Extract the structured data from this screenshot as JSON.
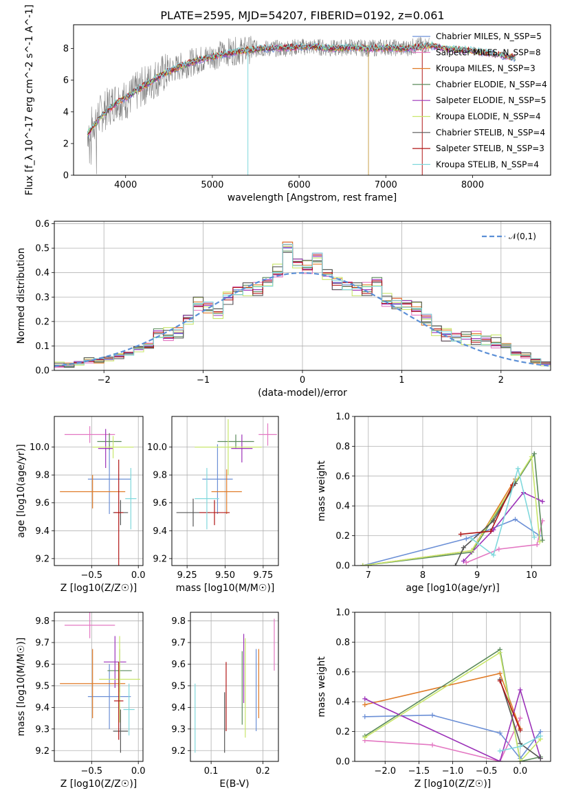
{
  "figure": {
    "title": "PLATE=2595, MJD=54207, FIBERID=0192, z=0.061"
  },
  "legend": [
    {
      "name": "Chabrier MILES, N_SSP=5",
      "color": "#6b8fd6"
    },
    {
      "name": "Salpeter MILES, N_SSP=8",
      "color": "#e377c2"
    },
    {
      "name": "Kroupa MILES, N_SSP=3",
      "color": "#e07b28"
    },
    {
      "name": "Chabrier ELODIE, N_SSP=4",
      "color": "#5a8a5a"
    },
    {
      "name": "Salpeter ELODIE, N_SSP=5",
      "color": "#9b30b8"
    },
    {
      "name": "Kroupa ELODIE, N_SSP=4",
      "color": "#c8e66a"
    },
    {
      "name": "Chabrier STELIB, N_SSP=4",
      "color": "#555555"
    },
    {
      "name": "Salpeter STELIB, N_SSP=3",
      "color": "#b01515"
    },
    {
      "name": "Kroupa STELIB, N_SSP=4",
      "color": "#7fd8dc"
    }
  ],
  "colors": {
    "data_spectrum": "#808080",
    "normal_curve": "#5b8fd6",
    "grid": "#b0b0b0"
  },
  "chart_data": [
    {
      "id": "spectrum",
      "type": "line",
      "xlabel": "wavelength [Angstrom, rest frame]",
      "ylabel": "Flux [f_λ 10^-17 erg cm^-2 s^-1 A^-1]",
      "xlim": [
        3400,
        8900
      ],
      "ylim": [
        0,
        9.5
      ],
      "xticks": [
        4000,
        5000,
        6000,
        7000,
        8000
      ],
      "yticks": [
        0,
        2,
        4,
        6,
        8
      ],
      "grid": false,
      "legend_position": "right",
      "data_envelope": {
        "x": [
          3560,
          3700,
          3900,
          4000,
          4200,
          4400,
          4600,
          4800,
          5000,
          5200,
          5400,
          5600,
          5800,
          6000,
          6200,
          6400,
          6600,
          6800,
          7000,
          7200,
          7400,
          7500
        ],
        "y": [
          2.8,
          3.8,
          4.8,
          4.7,
          5.6,
          6.3,
          6.8,
          7.2,
          7.5,
          7.8,
          7.9,
          8.0,
          8.0,
          8.1,
          8.1,
          8.0,
          8.1,
          8.0,
          8.1,
          8.0,
          8.2,
          8.2
        ]
      },
      "model_continuum": {
        "x": [
          3560,
          3700,
          3900,
          4000,
          4200,
          4400,
          4600,
          4800,
          5000,
          5200,
          5400,
          5600,
          5800,
          6000,
          6200,
          6400,
          6600,
          6800,
          7000,
          7200,
          7400,
          7500,
          7700,
          8000,
          8300,
          8500
        ],
        "y": [
          2.6,
          3.6,
          4.6,
          4.9,
          5.6,
          6.3,
          6.8,
          7.2,
          7.5,
          7.7,
          7.9,
          8.0,
          8.05,
          8.1,
          8.1,
          8.0,
          8.05,
          8.0,
          8.05,
          8.0,
          8.1,
          8.2,
          8.0,
          7.85,
          7.6,
          7.4
        ]
      }
    },
    {
      "id": "residuals",
      "type": "histogram",
      "xlabel": "(data-model)/error",
      "ylabel": "Normed distribution",
      "xlim": [
        -2.5,
        2.5
      ],
      "ylim": [
        0,
        0.61
      ],
      "xticks": [
        -2,
        -1,
        0,
        1,
        2
      ],
      "xtick_labels": [
        "−2",
        "−1",
        "0",
        "1",
        "2"
      ],
      "yticks": [
        0,
        0.1,
        0.2,
        0.3,
        0.4,
        0.5,
        0.6
      ],
      "grid": true,
      "bin_width": 0.1,
      "legend": "𝒩(0,1)",
      "legend_position": "top-right",
      "reference_curve": "normal(0,1)",
      "bins_center": [
        -2.45,
        -2.35,
        -2.25,
        -2.15,
        -2.05,
        -1.95,
        -1.85,
        -1.75,
        -1.65,
        -1.55,
        -1.45,
        -1.35,
        -1.25,
        -1.15,
        -1.05,
        -0.95,
        -0.85,
        -0.75,
        -0.65,
        -0.55,
        -0.45,
        -0.35,
        -0.25,
        -0.15,
        -0.05,
        0.05,
        0.15,
        0.25,
        0.35,
        0.45,
        0.55,
        0.65,
        0.75,
        0.85,
        0.95,
        1.05,
        1.15,
        1.25,
        1.35,
        1.45,
        1.55,
        1.65,
        1.75,
        1.85,
        1.95,
        2.05,
        2.15,
        2.25,
        2.35,
        2.45
      ],
      "values": [
        0.02,
        0.02,
        0.03,
        0.04,
        0.04,
        0.05,
        0.06,
        0.07,
        0.09,
        0.1,
        0.15,
        0.14,
        0.15,
        0.21,
        0.27,
        0.26,
        0.24,
        0.3,
        0.33,
        0.34,
        0.33,
        0.36,
        0.4,
        0.5,
        0.44,
        0.42,
        0.46,
        0.4,
        0.36,
        0.35,
        0.34,
        0.33,
        0.36,
        0.28,
        0.27,
        0.27,
        0.25,
        0.21,
        0.17,
        0.15,
        0.14,
        0.14,
        0.13,
        0.12,
        0.11,
        0.1,
        0.07,
        0.06,
        0.04,
        0.03
      ]
    },
    {
      "id": "age-vs-Z",
      "type": "errorbar",
      "xlabel": "Z [log10(Z/Z☉)]",
      "ylabel": "age  [log10(age/yr)]",
      "xlim": [
        -0.9,
        0.05
      ],
      "ylim": [
        9.15,
        10.22
      ],
      "xticks": [
        -0.5,
        0.0
      ],
      "xtick_labels": [
        "−0.5",
        "0.0"
      ],
      "yticks": [
        9.2,
        9.4,
        9.6,
        9.8,
        10.0
      ],
      "grid": true,
      "points": [
        {
          "x": -0.31,
          "y": 9.77,
          "xerr": 0.23,
          "yerr": 0.25,
          "color": "#6b8fd6"
        },
        {
          "x": -0.52,
          "y": 10.09,
          "xerr": 0.27,
          "yerr": 0.06,
          "color": "#e377c2"
        },
        {
          "x": -0.49,
          "y": 9.68,
          "xerr": 0.35,
          "yerr": 0.12,
          "color": "#e07b28"
        },
        {
          "x": -0.31,
          "y": 10.04,
          "xerr": 0.13,
          "yerr": 0.06,
          "color": "#5a8a5a"
        },
        {
          "x": -0.35,
          "y": 9.99,
          "xerr": 0.08,
          "yerr": 0.14,
          "color": "#9b30b8"
        },
        {
          "x": -0.27,
          "y": 10.0,
          "xerr": 0.22,
          "yerr": 0.08,
          "color": "#c8e66a"
        },
        {
          "x": -0.19,
          "y": 9.53,
          "xerr": 0.08,
          "yerr": 0.09,
          "color": "#555555"
        },
        {
          "x": -0.21,
          "y": 9.53,
          "xerr": 0.05,
          "yerr": 0.38,
          "color": "#b01515"
        },
        {
          "x": -0.08,
          "y": 9.63,
          "xerr": 0.06,
          "yerr": 0.22,
          "color": "#7fd8dc"
        }
      ]
    },
    {
      "id": "age-vs-mass",
      "type": "errorbar",
      "xlabel": "mass [log10(M/M☉)]",
      "ylabel": "",
      "xlim": [
        9.15,
        9.85
      ],
      "ylim": [
        9.15,
        10.22
      ],
      "xticks": [
        9.25,
        9.5,
        9.75
      ],
      "xtick_labels": [
        "9.25",
        "9.50",
        "9.75"
      ],
      "yticks": [
        9.2,
        9.4,
        9.6,
        9.8,
        10.0
      ],
      "grid": true,
      "points": [
        {
          "x": 9.45,
          "y": 9.77,
          "xerr": 0.1,
          "yerr": 0.25,
          "color": "#6b8fd6"
        },
        {
          "x": 9.78,
          "y": 10.09,
          "xerr": 0.06,
          "yerr": 0.08,
          "color": "#e377c2"
        },
        {
          "x": 9.51,
          "y": 9.68,
          "xerr": 0.1,
          "yerr": 0.16,
          "color": "#e07b28"
        },
        {
          "x": 9.57,
          "y": 10.04,
          "xerr": 0.12,
          "yerr": 0.05,
          "color": "#5a8a5a"
        },
        {
          "x": 9.61,
          "y": 9.99,
          "xerr": 0.07,
          "yerr": 0.1,
          "color": "#9b30b8"
        },
        {
          "x": 9.52,
          "y": 10.0,
          "xerr": 0.22,
          "yerr": 0.2,
          "color": "#c8e66a"
        },
        {
          "x": 9.29,
          "y": 9.53,
          "xerr": 0.11,
          "yerr": 0.1,
          "color": "#555555"
        },
        {
          "x": 9.43,
          "y": 9.53,
          "xerr": 0.1,
          "yerr": 0.09,
          "color": "#b01515"
        },
        {
          "x": 9.38,
          "y": 9.63,
          "xerr": 0.08,
          "yerr": 0.22,
          "color": "#7fd8dc"
        }
      ]
    },
    {
      "id": "weight-vs-age",
      "type": "line",
      "xlabel": "age  [log10(age/yr)]",
      "ylabel": "mass weight",
      "xlim": [
        6.75,
        10.35
      ],
      "ylim": [
        0,
        1.0
      ],
      "xticks": [
        7,
        8,
        9,
        10
      ],
      "yticks": [
        0.0,
        0.2,
        0.4,
        0.6,
        0.8,
        1.0
      ],
      "grid": true,
      "series": [
        {
          "color": "#6b8fd6",
          "x": [
            6.9,
            8.8,
            9.7,
            10.15
          ],
          "y": [
            0.0,
            0.18,
            0.31,
            0.2
          ]
        },
        {
          "color": "#e377c2",
          "x": [
            8.8,
            9.4,
            10.1,
            10.2
          ],
          "y": [
            0.02,
            0.11,
            0.14,
            0.3
          ]
        },
        {
          "color": "#e07b28",
          "x": [
            6.9,
            8.9,
            9.7
          ],
          "y": [
            0.0,
            0.1,
            0.58
          ]
        },
        {
          "color": "#5a8a5a",
          "x": [
            6.9,
            8.9,
            10.05,
            10.2
          ],
          "y": [
            0.0,
            0.09,
            0.75,
            0.17
          ]
        },
        {
          "color": "#9b30b8",
          "x": [
            8.75,
            9.3,
            9.85,
            10.2
          ],
          "y": [
            0.03,
            0.24,
            0.49,
            0.43
          ]
        },
        {
          "color": "#c8e66a",
          "x": [
            6.9,
            8.9,
            10.0,
            10.15
          ],
          "y": [
            0.0,
            0.1,
            0.73,
            0.16
          ]
        },
        {
          "color": "#555555",
          "x": [
            8.6,
            8.75,
            9.3,
            9.7
          ],
          "y": [
            0.0,
            0.12,
            0.3,
            0.55
          ]
        },
        {
          "color": "#b01515",
          "x": [
            8.7,
            9.25,
            9.65
          ],
          "y": [
            0.21,
            0.23,
            0.54
          ]
        },
        {
          "color": "#7fd8dc",
          "x": [
            8.9,
            9.3,
            9.75,
            10.05
          ],
          "y": [
            0.18,
            0.07,
            0.65,
            0.19
          ]
        }
      ]
    },
    {
      "id": "mass-vs-Z",
      "type": "errorbar",
      "xlabel": "Z [log10(Z/Z☉)]",
      "ylabel": "mass [log10(M/M☉)]",
      "xlim": [
        -0.9,
        0.05
      ],
      "ylim": [
        9.15,
        9.84
      ],
      "xticks": [
        -0.5,
        0.0
      ],
      "xtick_labels": [
        "−0.5",
        "0.0"
      ],
      "yticks": [
        9.2,
        9.3,
        9.4,
        9.5,
        9.6,
        9.7,
        9.8
      ],
      "grid": true,
      "points": [
        {
          "x": -0.31,
          "y": 9.45,
          "xerr": 0.23,
          "yerr": 0.15,
          "color": "#6b8fd6"
        },
        {
          "x": -0.52,
          "y": 9.78,
          "xerr": 0.27,
          "yerr": 0.06,
          "color": "#e377c2"
        },
        {
          "x": -0.49,
          "y": 9.51,
          "xerr": 0.35,
          "yerr": 0.16,
          "color": "#e07b28"
        },
        {
          "x": -0.2,
          "y": 9.57,
          "xerr": 0.13,
          "yerr": 0.1,
          "color": "#5a8a5a"
        },
        {
          "x": -0.25,
          "y": 9.61,
          "xerr": 0.12,
          "yerr": 0.12,
          "color": "#9b30b8"
        },
        {
          "x": -0.2,
          "y": 9.53,
          "xerr": 0.22,
          "yerr": 0.2,
          "color": "#c8e66a"
        },
        {
          "x": -0.19,
          "y": 9.29,
          "xerr": 0.08,
          "yerr": 0.1,
          "color": "#555555"
        },
        {
          "x": -0.21,
          "y": 9.43,
          "xerr": 0.05,
          "yerr": 0.18,
          "color": "#b01515"
        },
        {
          "x": -0.1,
          "y": 9.39,
          "xerr": 0.06,
          "yerr": 0.12,
          "color": "#7fd8dc"
        }
      ]
    },
    {
      "id": "mass-vs-ebv",
      "type": "errorbar",
      "xlabel": "E(B-V)",
      "ylabel": "",
      "xlim": [
        0.06,
        0.23
      ],
      "ylim": [
        9.15,
        9.84
      ],
      "xticks": [
        0.1,
        0.2
      ],
      "xtick_labels": [
        "0.1",
        "0.2"
      ],
      "yticks": [
        9.2,
        9.3,
        9.4,
        9.5,
        9.6,
        9.7,
        9.8
      ],
      "grid": true,
      "points": [
        {
          "x": 0.187,
          "y": 9.48,
          "xerr": 0,
          "yerr": 0.19,
          "color": "#6b8fd6"
        },
        {
          "x": 0.222,
          "y": 9.69,
          "xerr": 0,
          "yerr": 0.12,
          "color": "#e377c2"
        },
        {
          "x": 0.192,
          "y": 9.51,
          "xerr": 0,
          "yerr": 0.16,
          "color": "#e07b28"
        },
        {
          "x": 0.16,
          "y": 9.49,
          "xerr": 0,
          "yerr": 0.17,
          "color": "#5a8a5a"
        },
        {
          "x": 0.163,
          "y": 9.58,
          "xerr": 0,
          "yerr": 0.16,
          "color": "#9b30b8"
        },
        {
          "x": 0.166,
          "y": 9.49,
          "xerr": 0,
          "yerr": 0.23,
          "color": "#c8e66a"
        },
        {
          "x": 0.126,
          "y": 9.33,
          "xerr": 0,
          "yerr": 0.14,
          "color": "#555555"
        },
        {
          "x": 0.129,
          "y": 9.45,
          "xerr": 0,
          "yerr": 0.16,
          "color": "#b01515"
        },
        {
          "x": 0.069,
          "y": 9.35,
          "xerr": 0,
          "yerr": 0.16,
          "color": "#7fd8dc"
        }
      ]
    },
    {
      "id": "weight-vs-Z",
      "type": "line",
      "xlabel": "Z [log10(Z/Z☉)]",
      "ylabel": "mass weight",
      "xlim": [
        -2.45,
        0.45
      ],
      "ylim": [
        0,
        1.0
      ],
      "xticks": [
        -2.0,
        -1.5,
        -1.0,
        -0.5,
        0.0
      ],
      "xtick_labels": [
        "−2.0",
        "−1.5",
        "−1.0",
        "−0.5",
        "0.0"
      ],
      "yticks": [
        0.0,
        0.2,
        0.4,
        0.6,
        0.8,
        1.0
      ],
      "grid": true,
      "series": [
        {
          "color": "#6b8fd6",
          "x": [
            -2.3,
            -1.3,
            -0.3,
            0.0,
            0.3
          ],
          "y": [
            0.3,
            0.31,
            0.19,
            0.02,
            0.2
          ]
        },
        {
          "color": "#e377c2",
          "x": [
            -2.3,
            -1.3,
            -0.3,
            0.0
          ],
          "y": [
            0.14,
            0.11,
            0.0,
            0.29
          ]
        },
        {
          "color": "#e07b28",
          "x": [
            -2.3,
            -0.3,
            0.0
          ],
          "y": [
            0.38,
            0.59,
            0.22
          ]
        },
        {
          "color": "#5a8a5a",
          "x": [
            -2.3,
            -0.3,
            0.0,
            0.3
          ],
          "y": [
            0.17,
            0.75,
            0.0,
            0.03
          ]
        },
        {
          "color": "#9b30b8",
          "x": [
            -2.3,
            -0.3,
            0.0,
            0.3
          ],
          "y": [
            0.42,
            0.0,
            0.48,
            0.02
          ]
        },
        {
          "color": "#c8e66a",
          "x": [
            -2.3,
            -0.3,
            0.0,
            0.3
          ],
          "y": [
            0.16,
            0.73,
            0.0,
            0.15
          ]
        },
        {
          "color": "#555555",
          "x": [
            -0.3,
            0.0,
            0.3
          ],
          "y": [
            0.55,
            0.12,
            0.02
          ]
        },
        {
          "color": "#b01515",
          "x": [
            -0.3,
            0.0
          ],
          "y": [
            0.54,
            0.21
          ]
        },
        {
          "color": "#7fd8dc",
          "x": [
            -0.3,
            0.0,
            0.3
          ],
          "y": [
            0.07,
            0.1,
            0.17
          ]
        }
      ]
    }
  ]
}
